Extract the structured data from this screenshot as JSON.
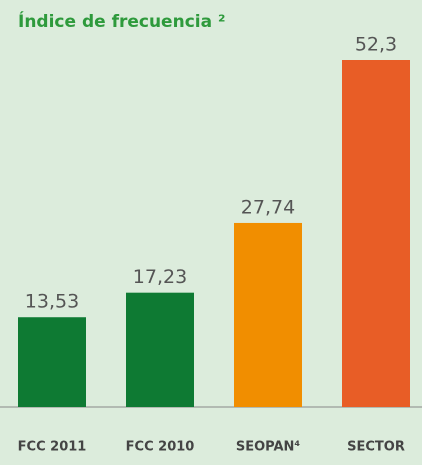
{
  "chart_data": {
    "type": "bar",
    "title": "Índice de frecuencia ²",
    "categories": [
      "FCC 2011",
      "FCC 2010",
      "SEOPAN⁴",
      "SECTOR"
    ],
    "values": [
      13.53,
      17.23,
      27.74,
      52.3
    ],
    "value_labels": [
      "13,53",
      "17,23",
      "27,74",
      "52,3"
    ],
    "colors": [
      "#0e7a33",
      "#0e7a33",
      "#f18e00",
      "#e85d26"
    ]
  }
}
